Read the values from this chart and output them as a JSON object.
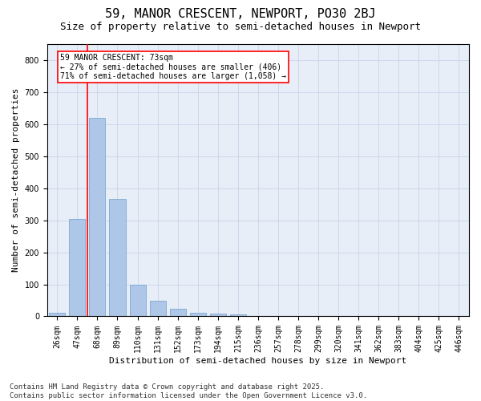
{
  "title_line1": "59, MANOR CRESCENT, NEWPORT, PO30 2BJ",
  "title_line2": "Size of property relative to semi-detached houses in Newport",
  "xlabel": "Distribution of semi-detached houses by size in Newport",
  "ylabel": "Number of semi-detached properties",
  "bar_color": "#aec6e8",
  "bar_edge_color": "#7aaad0",
  "categories": [
    "26sqm",
    "47sqm",
    "68sqm",
    "89sqm",
    "110sqm",
    "131sqm",
    "152sqm",
    "173sqm",
    "194sqm",
    "215sqm",
    "236sqm",
    "257sqm",
    "278sqm",
    "299sqm",
    "320sqm",
    "341sqm",
    "362sqm",
    "383sqm",
    "404sqm",
    "425sqm",
    "446sqm"
  ],
  "values": [
    12,
    303,
    619,
    368,
    99,
    48,
    24,
    11,
    8,
    5,
    0,
    0,
    0,
    0,
    0,
    0,
    0,
    0,
    0,
    0,
    0
  ],
  "ylim": [
    0,
    850
  ],
  "yticks": [
    0,
    100,
    200,
    300,
    400,
    500,
    600,
    700,
    800
  ],
  "vline_x": 1.5,
  "annotation_text": "59 MANOR CRESCENT: 73sqm\n← 27% of semi-detached houses are smaller (406)\n71% of semi-detached houses are larger (1,058) →",
  "vline_color": "red",
  "annotation_box_facecolor": "white",
  "annotation_box_edgecolor": "red",
  "grid_color": "#c8d4e8",
  "background_color": "#e8eef8",
  "footer_text": "Contains HM Land Registry data © Crown copyright and database right 2025.\nContains public sector information licensed under the Open Government Licence v3.0.",
  "title_fontsize": 11,
  "subtitle_fontsize": 9,
  "ylabel_fontsize": 8,
  "xlabel_fontsize": 8,
  "tick_fontsize": 7,
  "annotation_fontsize": 7,
  "footer_fontsize": 6.5
}
